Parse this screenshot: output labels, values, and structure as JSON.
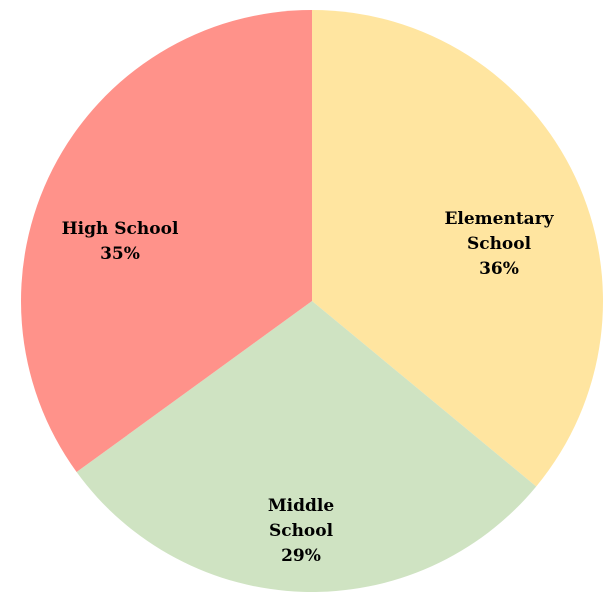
{
  "chart_data": {
    "type": "pie",
    "categories": [
      "Elementary School",
      "Middle School",
      "High School"
    ],
    "values": [
      36,
      29,
      35
    ],
    "unit": "%",
    "colors": [
      "#FFE5A0",
      "#CFE3C2",
      "#FF928A"
    ],
    "labels": [
      {
        "lines": [
          "Elementary",
          "School"
        ],
        "pct": "36%"
      },
      {
        "lines": [
          "Middle",
          "School"
        ],
        "pct": "29%"
      },
      {
        "lines": [
          "High School"
        ],
        "pct": "35%"
      }
    ],
    "start": "12 o'clock",
    "direction": "clockwise",
    "legend": "none"
  }
}
